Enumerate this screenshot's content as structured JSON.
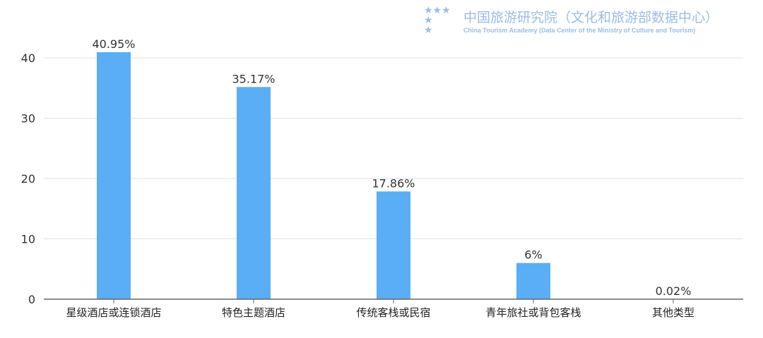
{
  "chart_data": {
    "type": "bar",
    "categories": [
      "星级酒店或连锁酒店",
      "特色主题酒店",
      "传统客栈或民宿",
      "青年旅社或背包客栈",
      "其他类型"
    ],
    "values": [
      40.95,
      35.17,
      17.86,
      6,
      0.02
    ],
    "data_labels": [
      "40.95%",
      "35.17%",
      "17.86%",
      "6%",
      "0.02%"
    ],
    "title": "",
    "xlabel": "",
    "ylabel": "",
    "ylim": [
      0,
      40
    ],
    "yticks": [
      "0",
      "10",
      "20",
      "30",
      "40"
    ],
    "grid": true,
    "legend": "none",
    "bar_color": "#5aaef5"
  },
  "watermark": {
    "title": "中国旅游研究院（文化和旅游部数据中心）",
    "subtitle": "China Tourism Academy (Data Center of the Ministry of Culture and Tourism)"
  }
}
